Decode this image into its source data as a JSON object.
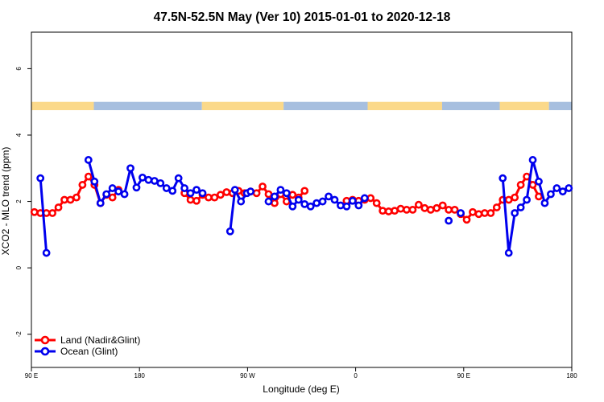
{
  "chart_data": {
    "type": "line",
    "title": "47.5N-52.5N May (Ver 10)   2015-01-01 to 2020-12-18",
    "xlabel": "Longitude (deg E)",
    "ylabel": "XCO2 - MLO trend (ppm)",
    "xlim": [
      90,
      540
    ],
    "ylim": [
      -3,
      7.1
    ],
    "xticks": [
      {
        "value": 90,
        "label": "90 E"
      },
      {
        "value": 180,
        "label": "180"
      },
      {
        "value": 270,
        "label": "90 W"
      },
      {
        "value": 360,
        "label": "0"
      },
      {
        "value": 450,
        "label": "90 E"
      },
      {
        "value": 540,
        "label": "180"
      }
    ],
    "yticks": [
      {
        "value": -2,
        "label": "-2"
      },
      {
        "value": 0,
        "label": "0"
      },
      {
        "value": 2,
        "label": "2"
      },
      {
        "value": 4,
        "label": "4"
      },
      {
        "value": 6,
        "label": "6"
      }
    ],
    "land_ocean_strip": {
      "y_bottom": 4.75,
      "y_top": 5.0,
      "land_color": "#fbd98a",
      "ocean_color": "#a7bfdf",
      "segments": [
        {
          "from": 90,
          "to": 142,
          "kind": "land"
        },
        {
          "from": 142,
          "to": 232,
          "kind": "ocean"
        },
        {
          "from": 232,
          "to": 300,
          "kind": "land"
        },
        {
          "from": 300,
          "to": 370,
          "kind": "ocean"
        },
        {
          "from": 370,
          "to": 432,
          "kind": "land"
        },
        {
          "from": 432,
          "to": 480,
          "kind": "ocean"
        },
        {
          "from": 480,
          "to": 521,
          "kind": "land"
        },
        {
          "from": 521,
          "to": 540,
          "kind": "ocean"
        }
      ]
    },
    "legend": {
      "position": "bottom-left",
      "entries": [
        {
          "label": "Land (Nadir&Glint)",
          "color": "#ff0000"
        },
        {
          "label": "Ocean (Glint)",
          "color": "#0000ee"
        }
      ]
    },
    "series": [
      {
        "name": "Land (Nadir&Glint)",
        "color": "#ff0000",
        "x": [
          92.5,
          97.5,
          102.5,
          107.5,
          112.5,
          117.5,
          122.5,
          127.5,
          132.5,
          137.5,
          142.5,
          147.5,
          152.5,
          157.5,
          162.5,
          217.5,
          222.5,
          227.5,
          232.5,
          237.5,
          242.5,
          247.5,
          252.5,
          257.5,
          262.5,
          267.5,
          272.5,
          277.5,
          282.5,
          287.5,
          292.5,
          297.5,
          302.5,
          307.5,
          312.5,
          317.5,
          352.5,
          357.5,
          362.5,
          367.5,
          372.5,
          377.5,
          382.5,
          387.5,
          392.5,
          397.5,
          402.5,
          407.5,
          412.5,
          417.5,
          422.5,
          427.5,
          432.5,
          437.5,
          442.5,
          447.5,
          452.5,
          457.5,
          462.5,
          467.5,
          472.5,
          477.5,
          482.5,
          487.5,
          492.5,
          497.5,
          502.5,
          507.5,
          512.5
        ],
        "y": [
          1.68,
          1.65,
          1.65,
          1.65,
          1.82,
          2.05,
          2.05,
          2.12,
          2.5,
          2.75,
          2.5,
          1.95,
          2.2,
          2.12,
          2.35,
          2.25,
          2.05,
          2.02,
          2.2,
          2.12,
          2.12,
          2.2,
          2.28,
          2.25,
          2.32,
          2.25,
          2.3,
          2.25,
          2.45,
          2.22,
          1.95,
          2.22,
          2.0,
          2.2,
          2.12,
          2.32,
          2.02,
          2.05,
          2.02,
          2.05,
          2.1,
          1.95,
          1.72,
          1.7,
          1.72,
          1.78,
          1.75,
          1.75,
          1.9,
          1.8,
          1.75,
          1.8,
          1.88,
          1.75,
          1.75,
          1.62,
          1.45,
          1.68,
          1.62,
          1.65,
          1.65,
          1.82,
          2.05,
          2.05,
          2.12,
          2.5,
          2.75,
          2.5,
          2.15
        ]
      },
      {
        "name": "Ocean (Glint)",
        "color": "#0000ee",
        "x": [
          97.5,
          102.5,
          137.5,
          142.5,
          147.5,
          152.5,
          157.5,
          162.5,
          167.5,
          172.5,
          177.5,
          182.5,
          187.5,
          192.5,
          197.5,
          202.5,
          207.5,
          212.5,
          217.5,
          222.5,
          227.5,
          232.5,
          255.5,
          259.5,
          264.5,
          269.5,
          272.5,
          287.5,
          292.5,
          297.5,
          302.5,
          307.5,
          312.5,
          317.5,
          322.5,
          327.5,
          332.5,
          337.5,
          342.5,
          347.5,
          352.5,
          357.5,
          362.5,
          367.5,
          437.5,
          447.5,
          482.5,
          487.5,
          492.5,
          497.5,
          502.5,
          507.5,
          512.5,
          517.5,
          522.5,
          527.5,
          532.5,
          537.5
        ],
        "y": [
          2.7,
          0.45,
          3.25,
          2.6,
          1.95,
          2.22,
          2.4,
          2.3,
          2.22,
          3.0,
          2.42,
          2.72,
          2.65,
          2.62,
          2.55,
          2.4,
          2.32,
          2.7,
          2.4,
          2.25,
          2.35,
          2.25,
          1.1,
          2.35,
          2.0,
          2.25,
          2.3,
          2.0,
          2.15,
          2.35,
          2.25,
          1.85,
          2.05,
          1.92,
          1.85,
          1.95,
          2.0,
          2.15,
          2.05,
          1.88,
          1.85,
          2.02,
          1.88,
          2.1,
          1.42,
          1.65,
          2.7,
          0.45,
          1.65,
          1.82,
          2.05,
          3.25,
          2.6,
          1.95,
          2.22,
          2.4,
          2.3,
          2.4
        ]
      }
    ]
  }
}
